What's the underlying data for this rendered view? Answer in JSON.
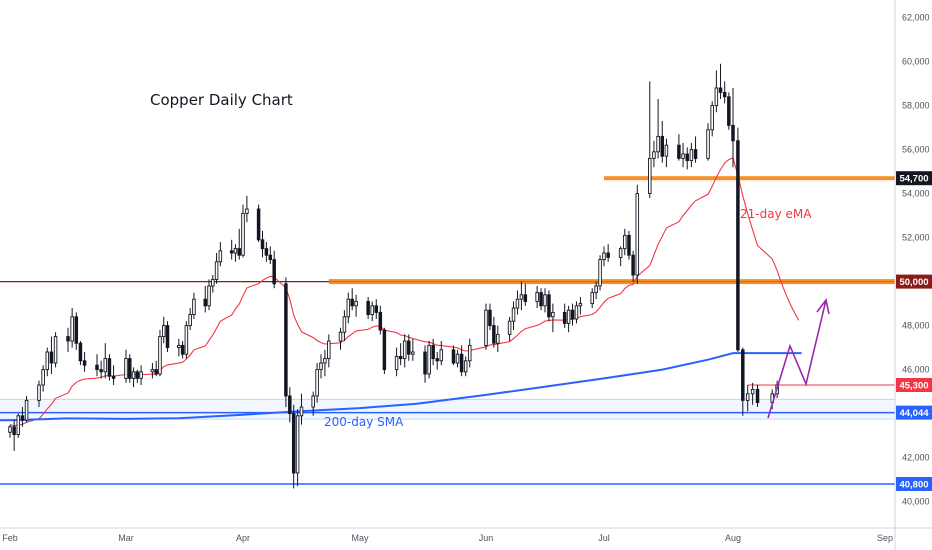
{
  "chart_data": {
    "type": "candlestick",
    "title": "Copper Daily Chart",
    "ylim": [
      38800,
      62800
    ],
    "y_ticks": [
      "62,000",
      "60,000",
      "58,000",
      "56,000",
      "54,000",
      "52,000",
      "50,000",
      "48,000",
      "46,000",
      "44,000",
      "42,000",
      "40,000"
    ],
    "x_ticks": [
      "Feb",
      "Mar",
      "Apr",
      "May",
      "Jun",
      "Jul",
      "Aug",
      "Sep"
    ],
    "horizontal_levels": [
      {
        "label": "54,700",
        "value": 54700,
        "color": "#f57c00",
        "badge": "#131722"
      },
      {
        "label": "50,000",
        "value": 50000,
        "color": "#f57c00",
        "badge": "#8b1a1a"
      },
      {
        "label": "45,300",
        "value": 45300,
        "color": "#f23645",
        "badge": "#f23645"
      },
      {
        "label": "44,044",
        "value": 44044,
        "color": "#2962ff",
        "badge": "#2962ff"
      },
      {
        "label": "40,800",
        "value": 40800,
        "color": "#2962ff",
        "badge": "#2962ff"
      }
    ],
    "annotations": {
      "ema_label": "21-day eMA",
      "sma_label": "200-day SMA"
    },
    "colors": {
      "candle": "#131722",
      "ema": "#f23645",
      "sma": "#2962ff",
      "resistance": "#f57c00",
      "arrow": "#9c27b0",
      "darkred_line": "#8b1a1a"
    },
    "candles": [
      {
        "d": "Feb 01",
        "o": 43150,
        "h": 43500,
        "l": 42900,
        "c": 43400
      },
      {
        "d": "Feb 02",
        "o": 43400,
        "h": 43700,
        "l": 42300,
        "c": 43050
      },
      {
        "d": "Feb 03",
        "o": 43050,
        "h": 44000,
        "l": 42900,
        "c": 43900
      },
      {
        "d": "Feb 04",
        "o": 43900,
        "h": 44300,
        "l": 43400,
        "c": 43700
      },
      {
        "d": "Feb 05",
        "o": 43700,
        "h": 44800,
        "l": 43600,
        "c": 44600
      },
      {
        "d": "Feb 08",
        "o": 44600,
        "h": 45500,
        "l": 44300,
        "c": 45300
      },
      {
        "d": "Feb 09",
        "o": 45300,
        "h": 46200,
        "l": 45000,
        "c": 46000
      },
      {
        "d": "Feb 10",
        "o": 46000,
        "h": 47000,
        "l": 45700,
        "c": 46800
      },
      {
        "d": "Feb 11",
        "o": 46800,
        "h": 47500,
        "l": 45800,
        "c": 46300
      },
      {
        "d": "Feb 12",
        "o": 46300,
        "h": 47700,
        "l": 46100,
        "c": 47500
      },
      {
        "d": "Feb 15",
        "o": 47500,
        "h": 47900,
        "l": 46800,
        "c": 47300
      },
      {
        "d": "Feb 16",
        "o": 47300,
        "h": 48800,
        "l": 47000,
        "c": 48400
      },
      {
        "d": "Feb 17",
        "o": 48400,
        "h": 48600,
        "l": 46900,
        "c": 47200
      },
      {
        "d": "Feb 18",
        "o": 47200,
        "h": 47300,
        "l": 46200,
        "c": 46400
      },
      {
        "d": "Feb 19",
        "o": 46400,
        "h": 46800,
        "l": 45900,
        "c": 46200
      },
      {
        "d": "Feb 22",
        "o": 46200,
        "h": 46700,
        "l": 45700,
        "c": 46000
      },
      {
        "d": "Feb 23",
        "o": 46000,
        "h": 46400,
        "l": 45600,
        "c": 45900
      },
      {
        "d": "Feb 24",
        "o": 45900,
        "h": 47200,
        "l": 45600,
        "c": 46500
      },
      {
        "d": "Feb 25",
        "o": 46500,
        "h": 46700,
        "l": 45500,
        "c": 45700
      },
      {
        "d": "Feb 26",
        "o": 45700,
        "h": 46200,
        "l": 45300,
        "c": 45600
      },
      {
        "d": "Mar 01",
        "o": 45600,
        "h": 46900,
        "l": 45400,
        "c": 46500
      },
      {
        "d": "Mar 02",
        "o": 46500,
        "h": 46700,
        "l": 45400,
        "c": 45600
      },
      {
        "d": "Mar 03",
        "o": 45600,
        "h": 46100,
        "l": 45200,
        "c": 45900
      },
      {
        "d": "Mar 04",
        "o": 45900,
        "h": 46000,
        "l": 45400,
        "c": 45600
      },
      {
        "d": "Mar 05",
        "o": 45600,
        "h": 46200,
        "l": 45300,
        "c": 45900
      },
      {
        "d": "Mar 08",
        "o": 45900,
        "h": 46300,
        "l": 45600,
        "c": 46000
      },
      {
        "d": "Mar 09",
        "o": 46000,
        "h": 46400,
        "l": 45700,
        "c": 45800
      },
      {
        "d": "Mar 10",
        "o": 45800,
        "h": 47800,
        "l": 45700,
        "c": 47500
      },
      {
        "d": "Mar 11",
        "o": 47500,
        "h": 48400,
        "l": 47200,
        "c": 48000
      },
      {
        "d": "Mar 12",
        "o": 48000,
        "h": 48200,
        "l": 46800,
        "c": 47000
      },
      {
        "d": "Mar 15",
        "o": 47000,
        "h": 47400,
        "l": 46600,
        "c": 47100
      },
      {
        "d": "Mar 16",
        "o": 47100,
        "h": 47300,
        "l": 46500,
        "c": 46700
      },
      {
        "d": "Mar 17",
        "o": 46700,
        "h": 48200,
        "l": 46500,
        "c": 48000
      },
      {
        "d": "Mar 18",
        "o": 48000,
        "h": 48800,
        "l": 47800,
        "c": 48500
      },
      {
        "d": "Mar 19",
        "o": 48500,
        "h": 49500,
        "l": 48300,
        "c": 49200
      },
      {
        "d": "Mar 22",
        "o": 49200,
        "h": 49800,
        "l": 48600,
        "c": 48900
      },
      {
        "d": "Mar 23",
        "o": 48900,
        "h": 50100,
        "l": 48700,
        "c": 49800
      },
      {
        "d": "Mar 24",
        "o": 49800,
        "h": 50300,
        "l": 49500,
        "c": 50100
      },
      {
        "d": "Mar 25",
        "o": 50100,
        "h": 51300,
        "l": 49900,
        "c": 50900
      },
      {
        "d": "Mar 26",
        "o": 50900,
        "h": 51800,
        "l": 50700,
        "c": 51400
      },
      {
        "d": "Mar 29",
        "o": 51400,
        "h": 51900,
        "l": 51000,
        "c": 51300
      },
      {
        "d": "Mar 30",
        "o": 51300,
        "h": 51700,
        "l": 50900,
        "c": 51500
      },
      {
        "d": "Mar 31",
        "o": 51500,
        "h": 52400,
        "l": 51000,
        "c": 51200
      },
      {
        "d": "Apr 01",
        "o": 51200,
        "h": 53500,
        "l": 51100,
        "c": 53100
      },
      {
        "d": "Apr 02",
        "o": 53100,
        "h": 53900,
        "l": 52700,
        "c": 53300
      },
      {
        "d": "Apr 05",
        "o": 53300,
        "h": 53500,
        "l": 51800,
        "c": 51900
      },
      {
        "d": "Apr 06",
        "o": 51900,
        "h": 52300,
        "l": 51100,
        "c": 51500
      },
      {
        "d": "Apr 07",
        "o": 51500,
        "h": 51800,
        "l": 50900,
        "c": 51200
      },
      {
        "d": "Apr 08",
        "o": 51200,
        "h": 51600,
        "l": 50800,
        "c": 51000
      },
      {
        "d": "Apr 09",
        "o": 51000,
        "h": 51400,
        "l": 49700,
        "c": 49900
      },
      {
        "d": "Apr 12",
        "o": 49900,
        "h": 50200,
        "l": 44300,
        "c": 44800
      },
      {
        "d": "Apr 13",
        "o": 44800,
        "h": 45200,
        "l": 43600,
        "c": 44000
      },
      {
        "d": "Apr 14",
        "o": 44000,
        "h": 44400,
        "l": 40600,
        "c": 41300
      },
      {
        "d": "Apr 15",
        "o": 41300,
        "h": 44200,
        "l": 40700,
        "c": 43900
      },
      {
        "d": "Apr 16",
        "o": 43900,
        "h": 44900,
        "l": 43500,
        "c": 44300
      },
      {
        "d": "Apr 19",
        "o": 44300,
        "h": 45000,
        "l": 43900,
        "c": 44800
      },
      {
        "d": "Apr 20",
        "o": 44800,
        "h": 46300,
        "l": 44500,
        "c": 46000
      },
      {
        "d": "Apr 21",
        "o": 46000,
        "h": 46700,
        "l": 45600,
        "c": 46300
      },
      {
        "d": "Apr 22",
        "o": 46300,
        "h": 46900,
        "l": 45700,
        "c": 46500
      },
      {
        "d": "Apr 23",
        "o": 46500,
        "h": 47600,
        "l": 46100,
        "c": 47300
      },
      {
        "d": "Apr 26",
        "o": 47300,
        "h": 47900,
        "l": 46900,
        "c": 47700
      },
      {
        "d": "Apr 27",
        "o": 47700,
        "h": 48700,
        "l": 47300,
        "c": 48400
      },
      {
        "d": "Apr 28",
        "o": 48400,
        "h": 49500,
        "l": 48100,
        "c": 49200
      },
      {
        "d": "Apr 29",
        "o": 49200,
        "h": 49700,
        "l": 48700,
        "c": 48900
      },
      {
        "d": "Apr 30",
        "o": 48900,
        "h": 49400,
        "l": 48400,
        "c": 49100
      },
      {
        "d": "May 03",
        "o": 49100,
        "h": 49300,
        "l": 48300,
        "c": 48500
      },
      {
        "d": "May 04",
        "o": 48500,
        "h": 49100,
        "l": 48200,
        "c": 48900
      },
      {
        "d": "May 05",
        "o": 48900,
        "h": 49200,
        "l": 48300,
        "c": 48600
      },
      {
        "d": "May 06",
        "o": 48600,
        "h": 48900,
        "l": 47600,
        "c": 47800
      },
      {
        "d": "May 07",
        "o": 47800,
        "h": 47900,
        "l": 45800,
        "c": 46000
      },
      {
        "d": "May 10",
        "o": 46000,
        "h": 47000,
        "l": 45700,
        "c": 46600
      },
      {
        "d": "May 11",
        "o": 46600,
        "h": 47200,
        "l": 46200,
        "c": 46500
      },
      {
        "d": "May 12",
        "o": 46500,
        "h": 47600,
        "l": 46100,
        "c": 47300
      },
      {
        "d": "May 13",
        "o": 47300,
        "h": 47600,
        "l": 46400,
        "c": 46700
      },
      {
        "d": "May 14",
        "o": 46700,
        "h": 47400,
        "l": 46400,
        "c": 46800
      },
      {
        "d": "May 17",
        "o": 46800,
        "h": 47100,
        "l": 45400,
        "c": 45800
      },
      {
        "d": "May 18",
        "o": 45800,
        "h": 47300,
        "l": 45600,
        "c": 47100
      },
      {
        "d": "May 19",
        "o": 47100,
        "h": 47400,
        "l": 46200,
        "c": 46500
      },
      {
        "d": "May 20",
        "o": 46500,
        "h": 46800,
        "l": 46000,
        "c": 46400
      },
      {
        "d": "May 21",
        "o": 46400,
        "h": 47300,
        "l": 46200,
        "c": 46900
      },
      {
        "d": "May 24",
        "o": 46900,
        "h": 47100,
        "l": 46200,
        "c": 46300
      },
      {
        "d": "May 25",
        "o": 46300,
        "h": 46900,
        "l": 46100,
        "c": 46700
      },
      {
        "d": "May 26",
        "o": 46700,
        "h": 47100,
        "l": 45700,
        "c": 45900
      },
      {
        "d": "May 27",
        "o": 45900,
        "h": 46600,
        "l": 45700,
        "c": 46400
      },
      {
        "d": "May 28",
        "o": 46400,
        "h": 47400,
        "l": 46100,
        "c": 47100
      },
      {
        "d": "Jun 01",
        "o": 47100,
        "h": 49000,
        "l": 46900,
        "c": 48700
      },
      {
        "d": "Jun 02",
        "o": 48700,
        "h": 49000,
        "l": 47800,
        "c": 48000
      },
      {
        "d": "Jun 03",
        "o": 48000,
        "h": 48400,
        "l": 47000,
        "c": 47200
      },
      {
        "d": "Jun 04",
        "o": 47200,
        "h": 48000,
        "l": 46800,
        "c": 47600
      },
      {
        "d": "Jun 07",
        "o": 47600,
        "h": 48400,
        "l": 47300,
        "c": 48200
      },
      {
        "d": "Jun 08",
        "o": 48200,
        "h": 49100,
        "l": 47800,
        "c": 48800
      },
      {
        "d": "Jun 09",
        "o": 48800,
        "h": 49600,
        "l": 48500,
        "c": 49200
      },
      {
        "d": "Jun 10",
        "o": 49200,
        "h": 50000,
        "l": 48700,
        "c": 49400
      },
      {
        "d": "Jun 11",
        "o": 49400,
        "h": 49900,
        "l": 48900,
        "c": 49100
      },
      {
        "d": "Jun 14",
        "o": 49100,
        "h": 49800,
        "l": 48800,
        "c": 49500
      },
      {
        "d": "Jun 15",
        "o": 49500,
        "h": 49700,
        "l": 48700,
        "c": 48900
      },
      {
        "d": "Jun 16",
        "o": 48900,
        "h": 49700,
        "l": 48600,
        "c": 49400
      },
      {
        "d": "Jun 17",
        "o": 49400,
        "h": 49600,
        "l": 48200,
        "c": 48400
      },
      {
        "d": "Jun 18",
        "o": 48400,
        "h": 49000,
        "l": 47700,
        "c": 48600
      },
      {
        "d": "Jun 21",
        "o": 48600,
        "h": 49000,
        "l": 47900,
        "c": 48100
      },
      {
        "d": "Jun 22",
        "o": 48100,
        "h": 48900,
        "l": 47700,
        "c": 48700
      },
      {
        "d": "Jun 23",
        "o": 48700,
        "h": 49000,
        "l": 48000,
        "c": 48300
      },
      {
        "d": "Jun 24",
        "o": 48300,
        "h": 49100,
        "l": 48100,
        "c": 48900
      },
      {
        "d": "Jun 25",
        "o": 48900,
        "h": 49300,
        "l": 48500,
        "c": 49000
      },
      {
        "d": "Jun 28",
        "o": 49000,
        "h": 49700,
        "l": 48800,
        "c": 49500
      },
      {
        "d": "Jun 29",
        "o": 49500,
        "h": 50000,
        "l": 49200,
        "c": 49800
      },
      {
        "d": "Jun 30",
        "o": 49800,
        "h": 51200,
        "l": 49600,
        "c": 51000
      },
      {
        "d": "Jul 01",
        "o": 51000,
        "h": 51600,
        "l": 50700,
        "c": 51300
      },
      {
        "d": "Jul 02",
        "o": 51300,
        "h": 51700,
        "l": 50900,
        "c": 51100
      },
      {
        "d": "Jul 05",
        "o": 51100,
        "h": 51600,
        "l": 50700,
        "c": 51500
      },
      {
        "d": "Jul 06",
        "o": 51500,
        "h": 52400,
        "l": 51200,
        "c": 52100
      },
      {
        "d": "Jul 07",
        "o": 52100,
        "h": 52300,
        "l": 51000,
        "c": 51200
      },
      {
        "d": "Jul 08",
        "o": 51200,
        "h": 51400,
        "l": 50000,
        "c": 50300
      },
      {
        "d": "Jul 09",
        "o": 50300,
        "h": 54400,
        "l": 49900,
        "c": 54000
      },
      {
        "d": "Jul 12",
        "o": 54000,
        "h": 59100,
        "l": 53800,
        "c": 55600
      },
      {
        "d": "Jul 13",
        "o": 55600,
        "h": 56400,
        "l": 55200,
        "c": 55900
      },
      {
        "d": "Jul 14",
        "o": 55900,
        "h": 58300,
        "l": 55600,
        "c": 56600
      },
      {
        "d": "Jul 15",
        "o": 56600,
        "h": 57300,
        "l": 55400,
        "c": 55700
      },
      {
        "d": "Jul 16",
        "o": 55700,
        "h": 56500,
        "l": 55200,
        "c": 56200
      },
      {
        "d": "Jul 19",
        "o": 56200,
        "h": 56700,
        "l": 55500,
        "c": 55600
      },
      {
        "d": "Jul 20",
        "o": 55600,
        "h": 56300,
        "l": 55200,
        "c": 55800
      },
      {
        "d": "Jul 21",
        "o": 55800,
        "h": 56100,
        "l": 55100,
        "c": 55500
      },
      {
        "d": "Jul 22",
        "o": 55500,
        "h": 56300,
        "l": 55200,
        "c": 56000
      },
      {
        "d": "Jul 23",
        "o": 56000,
        "h": 56600,
        "l": 55400,
        "c": 55600
      },
      {
        "d": "Jul 26",
        "o": 55600,
        "h": 57200,
        "l": 55500,
        "c": 56900
      },
      {
        "d": "Jul 27",
        "o": 56900,
        "h": 58200,
        "l": 56600,
        "c": 58000
      },
      {
        "d": "Jul 28",
        "o": 58000,
        "h": 59600,
        "l": 57700,
        "c": 58800
      },
      {
        "d": "Jul 29",
        "o": 58800,
        "h": 59900,
        "l": 58300,
        "c": 58600
      },
      {
        "d": "Jul 30",
        "o": 58600,
        "h": 59100,
        "l": 58100,
        "c": 58400
      },
      {
        "d": "Jul 31",
        "o": 58400,
        "h": 58600,
        "l": 56900,
        "c": 57100
      },
      {
        "d": "Aug 01",
        "o": 57100,
        "h": 58800,
        "l": 55200,
        "c": 56400
      },
      {
        "d": "Aug 02",
        "o": 56400,
        "h": 57000,
        "l": 46800,
        "c": 46900
      },
      {
        "d": "Aug 03",
        "o": 46900,
        "h": 47000,
        "l": 43900,
        "c": 44600
      },
      {
        "d": "Aug 04",
        "o": 44600,
        "h": 45300,
        "l": 44100,
        "c": 44900
      },
      {
        "d": "Aug 05",
        "o": 44900,
        "h": 45400,
        "l": 44400,
        "c": 45100
      },
      {
        "d": "Aug 06",
        "o": 45100,
        "h": 45300,
        "l": 44300,
        "c": 44500
      },
      {
        "d": "Aug 09",
        "o": 44500,
        "h": 45100,
        "l": 44200,
        "c": 44900
      },
      {
        "d": "Aug 10",
        "o": 44900,
        "h": 45500,
        "l": 44700,
        "c": 45300
      }
    ]
  }
}
